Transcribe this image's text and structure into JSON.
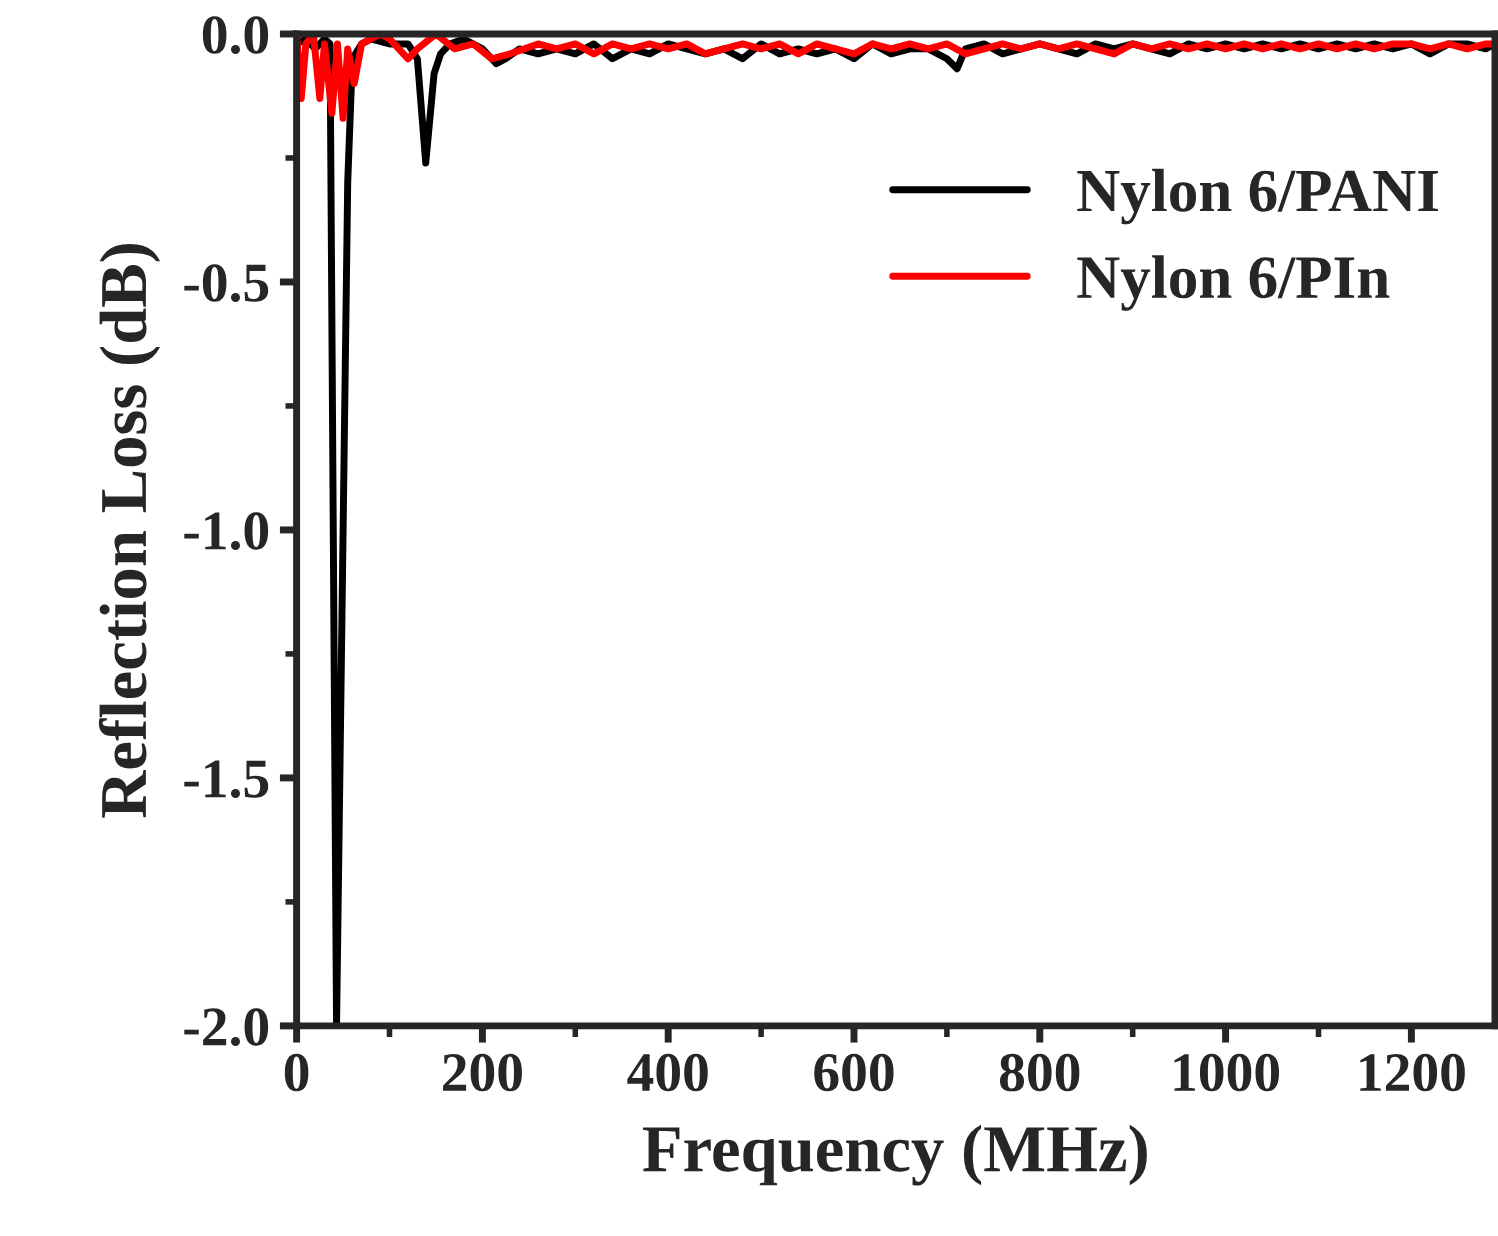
{
  "chart_data": {
    "type": "line",
    "xlabel": "Frequency (MHz)",
    "ylabel": "Reflection Loss (dB)",
    "xlim": [
      0,
      1290
    ],
    "ylim": [
      -2.0,
      0.0
    ],
    "xticks": [
      0,
      {
        "value": 100,
        "label": null
      },
      200,
      {
        "value": 300,
        "label": null
      },
      400,
      {
        "value": 500,
        "label": null
      },
      600,
      {
        "value": 700,
        "label": null
      },
      800,
      {
        "value": 900,
        "label": null
      },
      1000,
      {
        "value": 1100,
        "label": null
      },
      1200
    ],
    "yticks": [
      {
        "value": -2.0,
        "label": "-2.0"
      },
      {
        "value": -1.75,
        "label": null
      },
      {
        "value": -1.5,
        "label": "-1.5"
      },
      {
        "value": -1.25,
        "label": null
      },
      {
        "value": -1.0,
        "label": "-1.0"
      },
      {
        "value": -0.75,
        "label": null
      },
      {
        "value": -0.5,
        "label": "-0.5"
      },
      {
        "value": -0.25,
        "label": null
      },
      {
        "value": 0.0,
        "label": "0.0"
      }
    ],
    "legend": "top right",
    "grid": false,
    "marker": "none",
    "line_style": "solid",
    "series": [
      {
        "name": "Nylon 6/PANI",
        "color": "#000000",
        "x": [
          0,
          10,
          20,
          30,
          36,
          43,
          55,
          60,
          70,
          80,
          100,
          120,
          130,
          139,
          148,
          155,
          165,
          180,
          200,
          215,
          225,
          240,
          260,
          280,
          300,
          320,
          340,
          360,
          380,
          400,
          420,
          440,
          460,
          480,
          500,
          520,
          540,
          560,
          580,
          600,
          620,
          640,
          660,
          680,
          700,
          711,
          720,
          740,
          760,
          780,
          800,
          820,
          840,
          860,
          880,
          900,
          920,
          940,
          960,
          980,
          1000,
          1020,
          1040,
          1060,
          1080,
          1100,
          1120,
          1140,
          1160,
          1180,
          1200,
          1220,
          1240,
          1260,
          1280,
          1290
        ],
        "values": [
          -0.02,
          -0.01,
          -0.03,
          -0.01,
          -0.02,
          -2.0,
          -0.3,
          -0.05,
          -0.02,
          -0.01,
          -0.02,
          -0.02,
          -0.05,
          -0.26,
          -0.08,
          -0.04,
          -0.02,
          -0.01,
          -0.03,
          -0.06,
          -0.05,
          -0.03,
          -0.04,
          -0.03,
          -0.04,
          -0.02,
          -0.05,
          -0.03,
          -0.04,
          -0.02,
          -0.03,
          -0.04,
          -0.03,
          -0.05,
          -0.02,
          -0.04,
          -0.03,
          -0.04,
          -0.03,
          -0.05,
          -0.02,
          -0.04,
          -0.03,
          -0.03,
          -0.05,
          -0.07,
          -0.03,
          -0.02,
          -0.04,
          -0.03,
          -0.02,
          -0.03,
          -0.04,
          -0.02,
          -0.03,
          -0.02,
          -0.03,
          -0.04,
          -0.02,
          -0.03,
          -0.02,
          -0.03,
          -0.02,
          -0.03,
          -0.02,
          -0.03,
          -0.02,
          -0.03,
          -0.02,
          -0.03,
          -0.02,
          -0.04,
          -0.02,
          -0.02,
          -0.03,
          -0.02
        ]
      },
      {
        "name": "Nylon 6/PIn",
        "color": "#ff0000",
        "x": [
          0,
          5,
          10,
          18,
          25,
          30,
          38,
          44,
          50,
          55,
          62,
          70,
          80,
          90,
          100,
          120,
          130,
          150,
          170,
          190,
          210,
          230,
          260,
          280,
          300,
          320,
          340,
          360,
          380,
          400,
          420,
          440,
          460,
          480,
          500,
          520,
          540,
          560,
          580,
          600,
          620,
          640,
          660,
          680,
          700,
          720,
          740,
          760,
          780,
          800,
          820,
          840,
          860,
          880,
          900,
          920,
          940,
          960,
          980,
          1000,
          1020,
          1040,
          1060,
          1080,
          1100,
          1120,
          1140,
          1160,
          1180,
          1200,
          1220,
          1240,
          1260,
          1280,
          1290
        ],
        "values": [
          0.0,
          -0.13,
          -0.02,
          0.0,
          -0.13,
          -0.02,
          -0.16,
          -0.02,
          -0.17,
          -0.03,
          -0.1,
          -0.02,
          -0.01,
          0.0,
          -0.01,
          -0.05,
          -0.03,
          0.0,
          -0.03,
          -0.02,
          -0.05,
          -0.04,
          -0.02,
          -0.03,
          -0.02,
          -0.04,
          -0.02,
          -0.03,
          -0.02,
          -0.03,
          -0.02,
          -0.04,
          -0.03,
          -0.02,
          -0.03,
          -0.02,
          -0.04,
          -0.02,
          -0.03,
          -0.04,
          -0.02,
          -0.03,
          -0.02,
          -0.03,
          -0.02,
          -0.04,
          -0.03,
          -0.02,
          -0.03,
          -0.02,
          -0.03,
          -0.02,
          -0.03,
          -0.04,
          -0.02,
          -0.03,
          -0.02,
          -0.03,
          -0.02,
          -0.03,
          -0.02,
          -0.03,
          -0.02,
          -0.03,
          -0.02,
          -0.03,
          -0.02,
          -0.03,
          -0.02,
          -0.02,
          -0.03,
          -0.02,
          -0.03,
          -0.02,
          -0.02
        ]
      }
    ]
  }
}
